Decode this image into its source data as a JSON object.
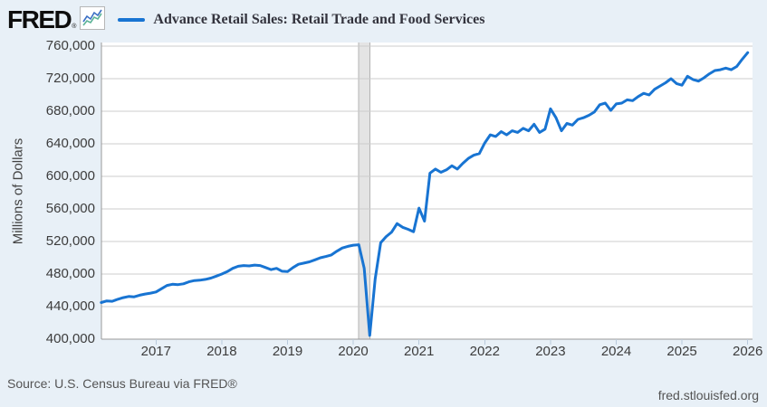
{
  "header": {
    "logo_text": "FRED",
    "registered_mark": "®",
    "legend_label": "Advance Retail Sales: Retail Trade and Food Services"
  },
  "axes": {
    "y_axis_title": "Millions of Dollars"
  },
  "footer": {
    "source_text": "Source: U.S. Census Bureau via FRED®",
    "site_link": "fred.stlouisfed.org"
  },
  "colors": {
    "line": "#1874d2",
    "page_background": "#e8f0f7",
    "plot_background": "#ffffff",
    "gridline": "#cccccc",
    "axis_border": "#999999",
    "recession_fill": "#e4e4e4",
    "recession_edge": "#b3b3b3",
    "x_tick_mark": "#b9cadb",
    "logo_icon_blue": "#3a6fc4",
    "logo_icon_green": "#5cb396"
  },
  "chart_data": {
    "type": "line",
    "title": "Advance Retail Sales: Retail Trade and Food Services",
    "ylabel": "Millions of Dollars",
    "unit": "Millions of Dollars",
    "frequency": "Monthly",
    "ylim": [
      400000,
      760000
    ],
    "yticks": [
      400000,
      440000,
      480000,
      520000,
      560000,
      600000,
      640000,
      680000,
      720000,
      760000
    ],
    "ytick_labels": [
      "400,000",
      "440,000",
      "480,000",
      "520,000",
      "560,000",
      "600,000",
      "640,000",
      "680,000",
      "720,000",
      "760,000"
    ],
    "xticks": [
      2017,
      2018,
      2019,
      2020,
      2021,
      2022,
      2023,
      2024,
      2025,
      2026
    ],
    "start": "2016-03",
    "end": "2026-01",
    "recession_shading": {
      "start": "2020-02",
      "end": "2020-04"
    },
    "grid": "horizontal",
    "legend_position": "top",
    "series": [
      {
        "name": "Advance Retail Sales: Retail Trade and Food Services",
        "color": "#1874d2",
        "values": [
          445000,
          447000,
          446500,
          449000,
          451000,
          452500,
          452000,
          454000,
          455500,
          456500,
          458000,
          462000,
          466000,
          467500,
          467000,
          468000,
          470500,
          472000,
          472500,
          473500,
          475000,
          477500,
          480000,
          483000,
          487000,
          489500,
          490500,
          490000,
          491000,
          490500,
          488000,
          485500,
          487000,
          483500,
          483000,
          488000,
          492000,
          493500,
          495000,
          497500,
          500000,
          501500,
          503500,
          508000,
          512000,
          514000,
          515500,
          516000,
          487000,
          404500,
          474000,
          518500,
          526000,
          531500,
          542000,
          537500,
          535000,
          532000,
          561000,
          545000,
          604000,
          609000,
          605000,
          608000,
          613000,
          609000,
          616000,
          622000,
          626000,
          628000,
          641000,
          651000,
          649000,
          655000,
          651000,
          656000,
          654000,
          659000,
          656000,
          664000,
          654000,
          658000,
          683000,
          672000,
          656000,
          665000,
          663000,
          670000,
          672000,
          675000,
          679000,
          688000,
          690000,
          681000,
          689000,
          690000,
          694000,
          693000,
          698000,
          702000,
          700000,
          707000,
          711000,
          715000,
          720000,
          714000,
          712000,
          723000,
          719000,
          717000,
          721000,
          726000,
          730000,
          731000,
          733000,
          731000,
          735000,
          744000,
          752000
        ]
      }
    ]
  }
}
